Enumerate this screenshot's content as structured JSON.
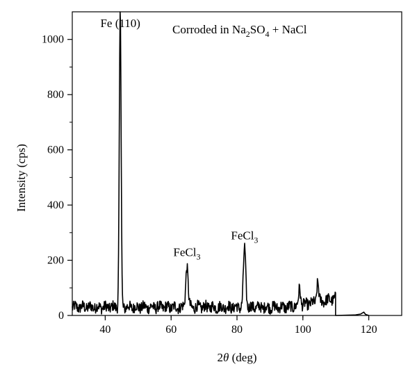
{
  "chart_data": {
    "type": "line",
    "title": "",
    "xlabel": {
      "prefix": "2",
      "symbol": "θ",
      "suffix": " (deg)"
    },
    "ylabel": "Intensity (cps)",
    "xlim": [
      30,
      130
    ],
    "ylim": [
      0,
      1100
    ],
    "xticks": [
      40,
      60,
      80,
      100,
      120
    ],
    "yticks": [
      0,
      200,
      400,
      600,
      800,
      1000
    ],
    "grid": false,
    "annotations": [
      {
        "id": "fe110",
        "text": "Fe (110)",
        "x": 44.6,
        "y": 1010
      },
      {
        "id": "fecl3-65",
        "base": "FeCl",
        "sub": "3",
        "x": 64.8,
        "y": 180
      },
      {
        "id": "fecl3-82",
        "base": "FeCl",
        "sub": "3",
        "x": 82.3,
        "y": 240
      }
    ],
    "legend": {
      "parts": [
        {
          "t": "Corroded in Na",
          "sub": false
        },
        {
          "t": "2",
          "sub": true
        },
        {
          "t": "SO",
          "sub": false
        },
        {
          "t": "4",
          "sub": true
        },
        {
          "t": " + NaCl",
          "sub": false
        }
      ],
      "placement": "top-right"
    },
    "peaks": [
      {
        "x": 44.6,
        "y": 1010,
        "width": 0.35
      },
      {
        "x": 44.3,
        "y": 260,
        "width": 0.3
      },
      {
        "x": 64.8,
        "y": 180,
        "width": 0.5
      },
      {
        "x": 82.3,
        "y": 245,
        "width": 0.5
      },
      {
        "x": 99.0,
        "y": 95,
        "width": 0.4
      },
      {
        "x": 104.5,
        "y": 105,
        "width": 0.4
      }
    ],
    "noise_range": [
      30,
      110
    ],
    "noise_baseline": 30,
    "tail_points": [
      [
        110,
        0
      ],
      [
        116,
        2
      ],
      [
        117.5,
        5
      ],
      [
        118.5,
        12
      ],
      [
        119,
        4
      ],
      [
        120,
        0
      ]
    ]
  }
}
